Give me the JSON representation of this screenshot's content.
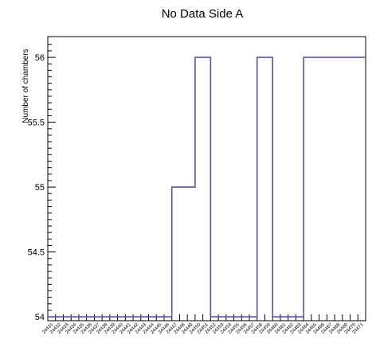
{
  "chart_data": {
    "type": "line",
    "title": "No Data Side A",
    "xlabel": "",
    "ylabel": "Number of chambers",
    "ylim": [
      53.97,
      56.16
    ],
    "yticks": [
      "54",
      "54.5",
      "55",
      "55.5",
      "56"
    ],
    "grid": false,
    "step": true,
    "line_color": "#5b53a6",
    "x_tick_labels": [
      "24431",
      "24432",
      "24433",
      "24434",
      "24435",
      "24436",
      "24437",
      "24438",
      "24439",
      "24440",
      "24441",
      "24442",
      "24443",
      "24444",
      "24445",
      "24446",
      "24447",
      "24448",
      "24449",
      "24450",
      "24451",
      "24452",
      "24453",
      "24454",
      "24455",
      "24456",
      "24457",
      "24458",
      "24459",
      "24460",
      "24461",
      "24462",
      "24463",
      "24464",
      "24465",
      "24466",
      "24467",
      "24468",
      "24469",
      "24470",
      "24471"
    ],
    "series": [
      {
        "values": [
          54,
          54,
          54,
          54,
          54,
          54,
          54,
          54,
          54,
          54,
          54,
          54,
          54,
          54,
          54,
          54,
          55,
          55,
          55,
          56,
          56,
          54,
          54,
          54,
          54,
          54,
          54,
          56,
          56,
          54,
          54,
          54,
          54,
          56,
          56,
          56,
          56,
          56,
          56,
          56,
          56
        ]
      }
    ]
  }
}
